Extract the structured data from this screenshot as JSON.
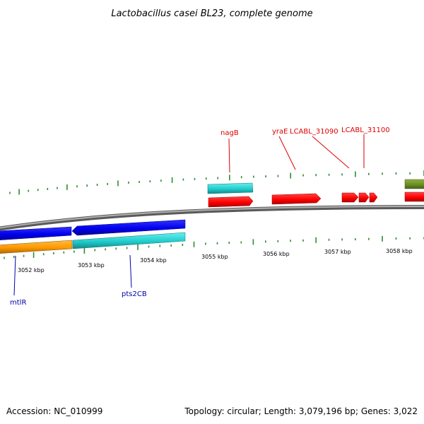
{
  "title": "Lactobacillus casei BL23, complete genome",
  "footer": {
    "accession": "Accession: NC_010999",
    "summary": "Topology: circular; Length: 3,079,196 bp; Genes: 3,022"
  },
  "colors": {
    "backbone": "#888888",
    "tick": "#2e8b2e",
    "label_forward": "#dd0000",
    "label_reverse": "#0000aa",
    "red": "#ff0000",
    "cyan": "#22cccc",
    "blue": "#0000ee",
    "orange": "#ff9900",
    "olive": "#6b8e23"
  },
  "scale_labels": [
    "3052 kbp",
    "3053 kbp",
    "3054 kbp",
    "3055 kbp",
    "3056 kbp",
    "3057 kbp",
    "3058 kbp"
  ],
  "gene_labels": [
    {
      "text": "nagB",
      "strand": "forward"
    },
    {
      "text": "yraE",
      "strand": "forward"
    },
    {
      "text": "LCABL_31090",
      "strand": "forward"
    },
    {
      "text": "LCABL_31100",
      "strand": "forward"
    },
    {
      "text": "mtlR",
      "strand": "reverse"
    },
    {
      "text": "pts2CB",
      "strand": "reverse"
    }
  ]
}
